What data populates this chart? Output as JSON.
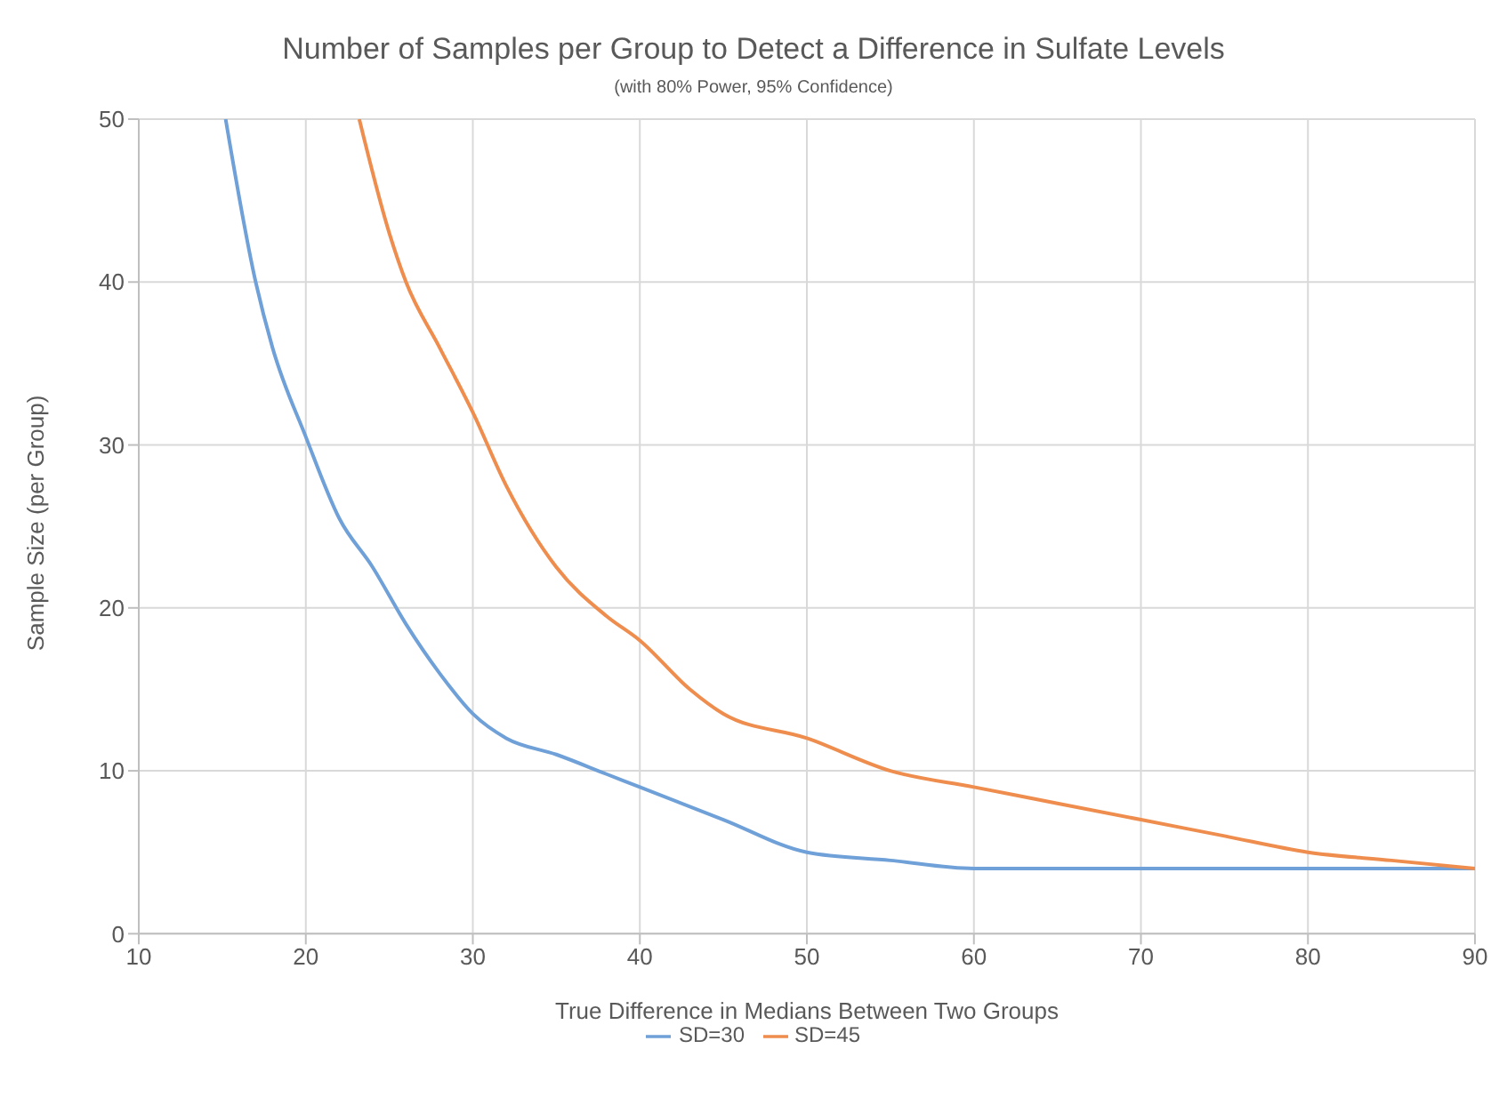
{
  "chart_data": {
    "type": "line",
    "title": "Number of Samples per Group to Detect a Difference in Sulfate Levels",
    "subtitle": "(with 80% Power, 95% Confidence)",
    "xlabel": "True Difference in Medians Between Two Groups",
    "ylabel": "Sample Size (per Group)",
    "xlim": [
      10,
      90
    ],
    "xticks": [
      10,
      20,
      30,
      40,
      50,
      60,
      70,
      80,
      90
    ],
    "ylim": [
      0,
      50
    ],
    "yticks": [
      0,
      10,
      20,
      30,
      40,
      50
    ],
    "grid": true,
    "legend": "bottom",
    "marker": "none",
    "series": [
      {
        "name": "SD=30",
        "color": "#6fa0d8",
        "x": [
          15.2,
          17,
          18,
          20,
          22,
          24,
          26,
          28,
          30,
          32,
          35,
          38,
          40,
          45,
          50,
          55,
          60,
          70,
          80,
          90
        ],
        "values": [
          50,
          40,
          36,
          30.5,
          25.5,
          22.5,
          19,
          16,
          13.5,
          12,
          11,
          9.8,
          9,
          7,
          5,
          4.5,
          4,
          4,
          4,
          4
        ]
      },
      {
        "name": "SD=45",
        "color": "#ee8d4d",
        "x": [
          23.2,
          25,
          26,
          28,
          30,
          32,
          35,
          38,
          40,
          43,
          45,
          50,
          55,
          60,
          65,
          70,
          75,
          80,
          85,
          90
        ],
        "values": [
          50,
          43,
          40,
          36,
          32,
          27.5,
          22.5,
          19.5,
          18,
          15,
          13.5,
          12,
          10,
          9,
          8,
          7,
          6,
          5,
          4.5,
          4
        ]
      }
    ]
  }
}
